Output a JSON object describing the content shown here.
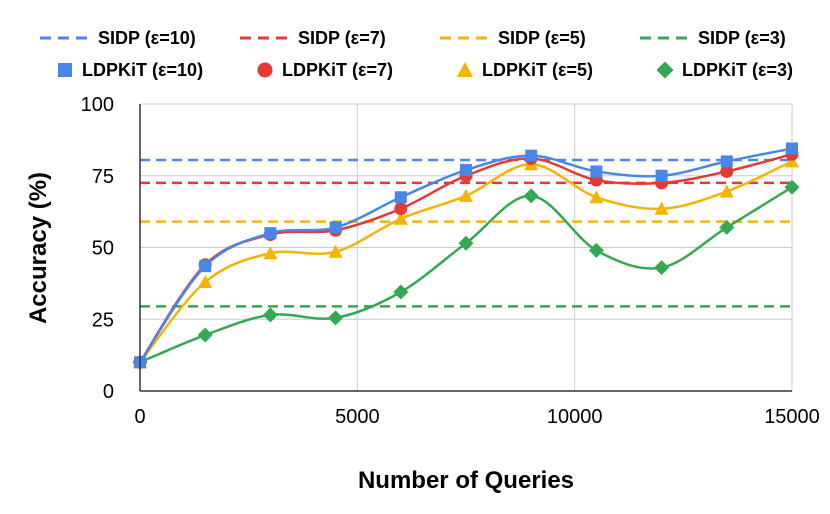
{
  "chart_data": {
    "type": "line",
    "title": "",
    "xlabel": "Number of Queries",
    "ylabel": "Accuracy (%)",
    "xlim": [
      0,
      15000
    ],
    "ylim": [
      0,
      100
    ],
    "x_ticks": [
      0,
      5000,
      10000,
      15000
    ],
    "x_tick_labels": [
      "0",
      "5000",
      "10000",
      "15000"
    ],
    "y_ticks": [
      0,
      25,
      50,
      75,
      100
    ],
    "y_tick_labels": [
      "0",
      "25",
      "50",
      "75",
      "100"
    ],
    "grid": true,
    "legend_position": "top",
    "x": [
      0,
      1500,
      3000,
      4500,
      6000,
      7500,
      9000,
      10500,
      12000,
      13500,
      15000
    ],
    "baselines": [
      {
        "name": "SIDP (ε=10)",
        "value": 80.5,
        "color": "#4a86e8"
      },
      {
        "name": "SIDP (ε=7)",
        "value": 72.5,
        "color": "#e53935"
      },
      {
        "name": "SIDP (ε=5)",
        "value": 59,
        "color": "#f4b400"
      },
      {
        "name": "SIDP (ε=3)",
        "value": 29.5,
        "color": "#34a853"
      }
    ],
    "series": [
      {
        "name": "LDPKiT (ε=10)",
        "marker": "square",
        "color": "#4a86e8",
        "values": [
          10,
          43.5,
          55,
          57,
          67.5,
          77,
          82,
          76.5,
          75,
          80,
          84.5
        ]
      },
      {
        "name": "LDPKiT (ε=7)",
        "marker": "circle",
        "color": "#e53935",
        "values": [
          10,
          44,
          54.5,
          56,
          63.5,
          75,
          81,
          73.5,
          72.5,
          76.5,
          82.5
        ]
      },
      {
        "name": "LDPKiT (ε=5)",
        "marker": "triangle",
        "color": "#f4b400",
        "values": [
          10,
          38,
          48,
          48.5,
          60,
          68,
          79,
          67.5,
          63.5,
          69.5,
          80
        ]
      },
      {
        "name": "LDPKiT (ε=3)",
        "marker": "diamond",
        "color": "#34a853",
        "values": [
          10,
          19.5,
          26.5,
          25.5,
          34.5,
          51.5,
          68,
          49,
          43,
          57,
          71
        ]
      }
    ]
  }
}
